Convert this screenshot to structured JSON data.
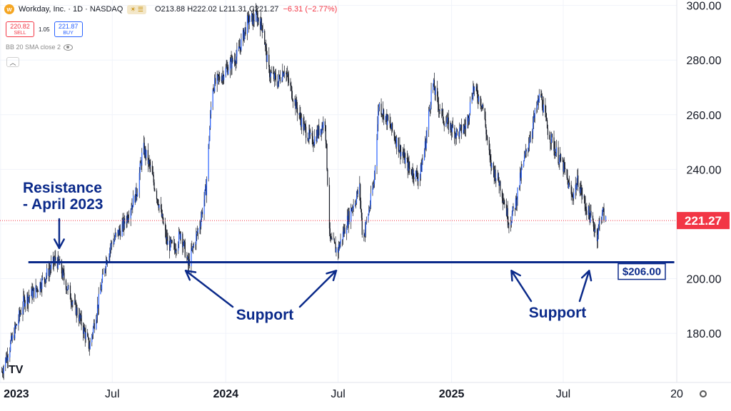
{
  "header": {
    "logo_letter": "w",
    "symbol_title": "Workday, Inc. · 1D · NASDAQ",
    "market_pill": "☀ ☰",
    "ohlc": "O213.88 H222.02 L211.31 C221.27",
    "change": "−6.31 (−2.77%)",
    "sell_price": "220.82",
    "sell_label": "SELL",
    "spread": "1.05",
    "buy_price": "221.87",
    "buy_label": "BUY",
    "indicator": "BB 20 SMA close 2",
    "collapse_icon": "chevron-up-icon",
    "tv_logo": "TV"
  },
  "chart_data": {
    "type": "candlestick",
    "y_range": [
      162,
      302
    ],
    "y_ticks": [
      180,
      200,
      220,
      240,
      260,
      280,
      300
    ],
    "y_tick_labels": [
      "180.00",
      "200.00",
      "220.00",
      "240.00",
      "260.00",
      "280.00",
      "300.00"
    ],
    "x_ticks": [
      "2023-01-01",
      "2023-07-01",
      "2024-01-01",
      "2024-07-01",
      "2025-01-01",
      "2025-07-01",
      "2026-01-01"
    ],
    "x_tick_labels": [
      "2023",
      "Jul",
      "2024",
      "Jul",
      "2025",
      "Jul",
      "20"
    ],
    "x_range": [
      "2022-12-31",
      "2026-01-01"
    ],
    "last_price": 221.27,
    "last_price_label": "221.27",
    "support_level": 206,
    "support_label": "$206.00",
    "colors": {
      "candle": "#131722",
      "up_accent": "#2962ff",
      "support_line": "#0b2a8a",
      "annotation": "#0b2a8a",
      "last_price_bg": "#f23645"
    },
    "closes": [
      [
        "2023-01-03",
        166
      ],
      [
        "2023-01-20",
        178
      ],
      [
        "2023-02-08",
        192
      ],
      [
        "2023-02-28",
        196
      ],
      [
        "2023-03-15",
        201
      ],
      [
        "2023-03-31",
        207
      ],
      [
        "2023-04-06",
        205
      ],
      [
        "2023-04-20",
        196
      ],
      [
        "2023-05-10",
        185
      ],
      [
        "2023-05-25",
        175
      ],
      [
        "2023-06-10",
        193
      ],
      [
        "2023-06-20",
        206
      ],
      [
        "2023-06-30",
        213
      ],
      [
        "2023-07-20",
        220
      ],
      [
        "2023-08-10",
        232
      ],
      [
        "2023-08-20",
        248
      ],
      [
        "2023-08-31",
        241
      ],
      [
        "2023-09-15",
        227
      ],
      [
        "2023-09-28",
        213
      ],
      [
        "2023-10-10",
        211
      ],
      [
        "2023-10-20",
        217
      ],
      [
        "2023-11-01",
        205
      ],
      [
        "2023-11-20",
        220
      ],
      [
        "2023-11-30",
        233
      ],
      [
        "2023-12-10",
        270
      ],
      [
        "2023-12-31",
        276
      ],
      [
        "2024-01-20",
        282
      ],
      [
        "2024-02-05",
        294
      ],
      [
        "2024-02-20",
        296
      ],
      [
        "2024-03-01",
        292
      ],
      [
        "2024-03-10",
        276
      ],
      [
        "2024-03-25",
        272
      ],
      [
        "2024-04-05",
        277
      ],
      [
        "2024-04-20",
        266
      ],
      [
        "2024-05-05",
        256
      ],
      [
        "2024-05-20",
        250
      ],
      [
        "2024-06-10",
        258
      ],
      [
        "2024-06-18",
        214
      ],
      [
        "2024-06-30",
        210
      ],
      [
        "2024-07-20",
        224
      ],
      [
        "2024-08-05",
        233
      ],
      [
        "2024-08-10",
        214
      ],
      [
        "2024-08-20",
        225
      ],
      [
        "2024-08-28",
        235
      ],
      [
        "2024-09-05",
        264
      ],
      [
        "2024-09-25",
        255
      ],
      [
        "2024-10-10",
        247
      ],
      [
        "2024-10-25",
        240
      ],
      [
        "2024-11-10",
        237
      ],
      [
        "2024-11-20",
        250
      ],
      [
        "2024-12-01",
        272
      ],
      [
        "2024-12-10",
        264
      ],
      [
        "2024-12-20",
        258
      ],
      [
        "2025-01-10",
        253
      ],
      [
        "2025-01-25",
        256
      ],
      [
        "2025-02-05",
        270
      ],
      [
        "2025-02-20",
        264
      ],
      [
        "2025-03-05",
        242
      ],
      [
        "2025-03-20",
        235
      ],
      [
        "2025-04-05",
        220
      ],
      [
        "2025-04-15",
        228
      ],
      [
        "2025-04-25",
        240
      ],
      [
        "2025-05-10",
        254
      ],
      [
        "2025-05-25",
        268
      ],
      [
        "2025-06-05",
        255
      ],
      [
        "2025-06-20",
        246
      ],
      [
        "2025-07-01",
        241
      ],
      [
        "2025-07-15",
        230
      ],
      [
        "2025-07-25",
        236
      ],
      [
        "2025-08-05",
        227
      ],
      [
        "2025-08-15",
        222
      ],
      [
        "2025-08-25",
        216
      ],
      [
        "2025-09-02",
        225
      ],
      [
        "2025-09-08",
        221
      ]
    ],
    "annotations": [
      {
        "text": [
          "Resistance",
          "- April 2023"
        ],
        "points_to": [
          "2023-04-06",
          207
        ]
      },
      {
        "text": [
          "Support"
        ],
        "points_to": [
          [
            "2023-10-28",
            205
          ],
          [
            "2024-06-28",
            205
          ]
        ]
      },
      {
        "text": [
          "Support"
        ],
        "points_to": [
          [
            "2025-04-08",
            205
          ],
          [
            "2025-08-12",
            205
          ]
        ]
      }
    ]
  }
}
